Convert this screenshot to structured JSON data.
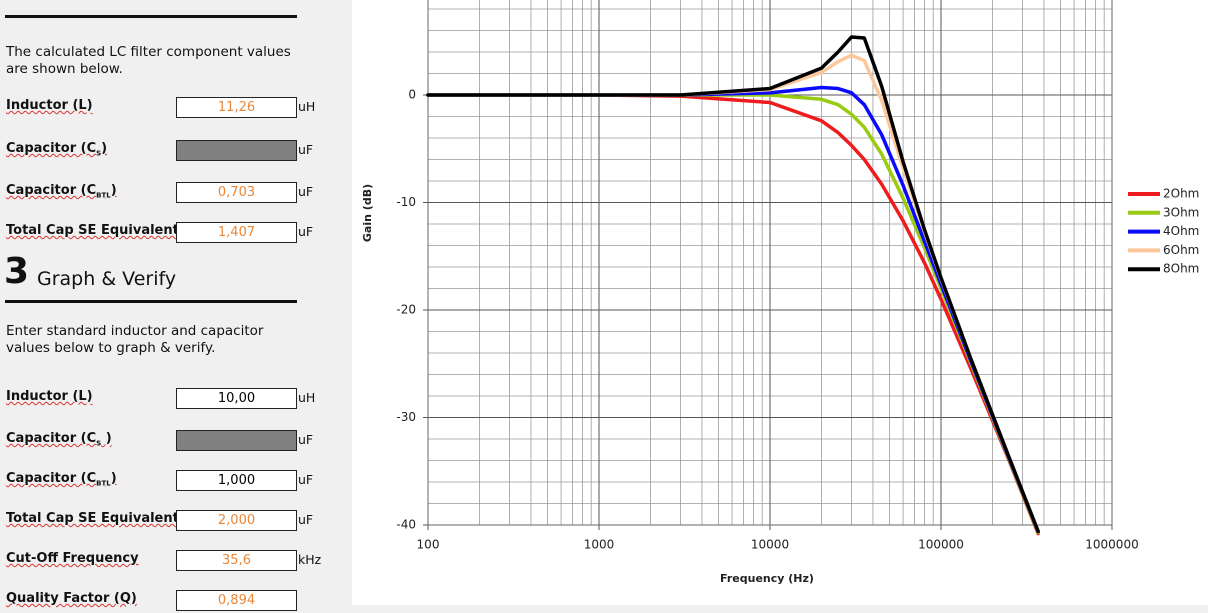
{
  "section2": {
    "intro": "The calculated LC filter component values are shown below.",
    "rows": [
      {
        "label": "Inductor (L)",
        "value": "11,26",
        "unit": "uH",
        "color": "#e8883a"
      },
      {
        "label": "Capacitor (C",
        "sub": "S",
        "label_end": ")",
        "unit": "uF"
      },
      {
        "label": "Capacitor (C",
        "sub": "BTL",
        "label_end": ")",
        "value": "0,703",
        "unit": "uF",
        "color": "#e8883a"
      },
      {
        "label": "Total Cap SE Equivalent",
        "value": "1,407",
        "unit": "uF",
        "color": "#e8883a"
      }
    ]
  },
  "section3": {
    "number": "3",
    "title": "Graph & Verify",
    "intro": "Enter standard inductor and capacitor values below to graph & verify.",
    "rows": [
      {
        "label": "Inductor (L)",
        "value": "10,00",
        "unit": "uH",
        "color": "#000000"
      },
      {
        "label": "Capacitor (C",
        "sub": "S",
        "label_end": " )",
        "unit": "uF"
      },
      {
        "label": "Capacitor (C",
        "sub": "BTL",
        "label_end": ")",
        "value": "1,000",
        "unit": "uF",
        "color": "#000000"
      },
      {
        "label": "Total Cap SE Equivalent",
        "value": "2,000",
        "unit": "uF",
        "color": "#e8883a"
      },
      {
        "label": "Cut-Off Frequency",
        "value": "35,6",
        "unit": "kHz",
        "color": "#e8883a"
      },
      {
        "label": "Quality Factor (Q)",
        "value": "0,894",
        "color": "#e8883a"
      }
    ]
  },
  "chart_data": {
    "type": "line",
    "x_label": "Frequency (Hz)",
    "y_label": "Gain (dB)",
    "x": [
      100,
      1000,
      3000,
      10000,
      20000,
      25000,
      30000,
      35600,
      45000,
      60000,
      80000,
      100000,
      150000,
      250000,
      370000
    ],
    "series": [
      {
        "name": "2Ohm",
        "color": "#ee1c1c",
        "values": [
          0,
          0,
          -0.1,
          -0.7,
          -2.4,
          -3.5,
          -4.7,
          -6.0,
          -8.3,
          -11.7,
          -15.6,
          -19.0,
          -25.5,
          -34.0,
          -40.8
        ]
      },
      {
        "name": "3Ohm",
        "color": "#99cc11",
        "values": [
          0,
          0,
          0,
          0,
          -0.4,
          -0.9,
          -1.8,
          -3.0,
          -5.5,
          -9.6,
          -14.2,
          -18.0,
          -25.0,
          -33.9,
          -40.7
        ]
      },
      {
        "name": "4Ohm",
        "color": "#0a0aff",
        "values": [
          0,
          0,
          0,
          0.2,
          0.7,
          0.6,
          0.2,
          -0.9,
          -3.7,
          -8.4,
          -13.6,
          -17.6,
          -24.8,
          -33.8,
          -40.6
        ]
      },
      {
        "name": "6Ohm",
        "color": "#fcc89b",
        "values": [
          0,
          0,
          0,
          0.5,
          2.1,
          3.1,
          3.7,
          3.2,
          -0.5,
          -6.8,
          -12.7,
          -17.1,
          -24.6,
          -33.7,
          -40.6
        ]
      },
      {
        "name": "8Ohm",
        "color": "#000000",
        "values": [
          0,
          0,
          0,
          0.6,
          2.5,
          4.0,
          5.4,
          5.3,
          0.8,
          -6.2,
          -12.5,
          -17.0,
          -24.6,
          -33.7,
          -40.6
        ]
      }
    ],
    "xlim": [
      100,
      1000000
    ],
    "xticks": [
      100,
      1000,
      10000,
      100000,
      1000000
    ],
    "ylim": [
      -40,
      10
    ],
    "yticks": [
      -40,
      -30,
      -20,
      -10,
      0
    ],
    "xscale": "log",
    "grid": true,
    "minor_grid": true,
    "legend": "right"
  }
}
